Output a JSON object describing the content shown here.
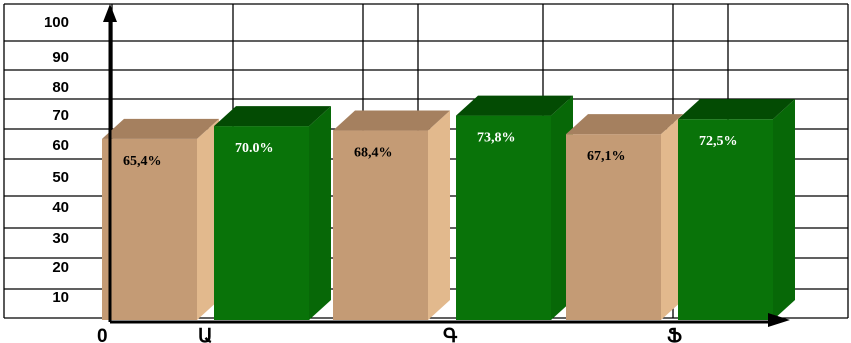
{
  "chart_data": {
    "type": "bar",
    "style": "3d-clustered",
    "origin_label": "0",
    "categories": [
      "Ա",
      "Գ",
      "Ֆ"
    ],
    "series": [
      {
        "values": [
          65.4,
          68.4,
          67.1
        ],
        "labels": [
          "65,4%",
          "68,4%",
          "67,1%"
        ]
      },
      {
        "values": [
          70.0,
          73.8,
          72.5
        ],
        "labels": [
          "70.0%",
          "73,8%",
          "72,5%"
        ]
      }
    ],
    "ylim": [
      0,
      100
    ],
    "yticks": [
      "10",
      "20",
      "30",
      "40",
      "50",
      "60",
      "70",
      "80",
      "90",
      "100"
    ],
    "grid": true,
    "colors": {
      "series1_front": "#c49b75",
      "series1_side": "#e2b98d",
      "series1_top": "#a5805f",
      "series2_front": "#097309",
      "series2_side": "#076807",
      "series2_top": "#034b03",
      "grid": "#000000",
      "label_series1": "#000000",
      "label_series2": "#ffffff"
    }
  }
}
